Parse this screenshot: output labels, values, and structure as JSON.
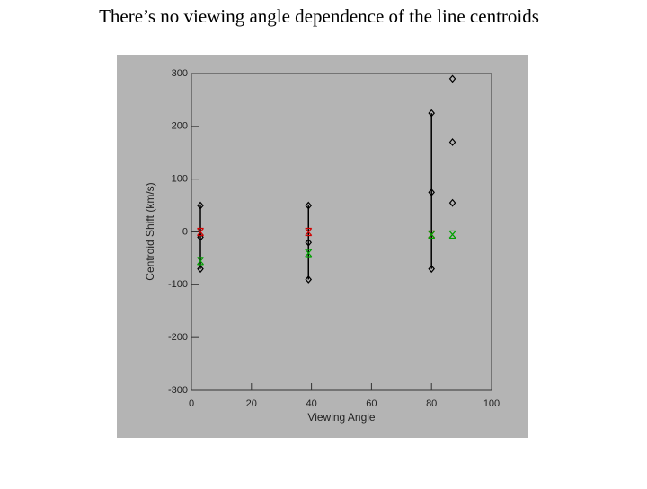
{
  "chart_data": {
    "type": "scatter",
    "title": "There’s no viewing angle dependence of the line centroids",
    "x_label": "Viewing Angle",
    "y_label": "Centroid Shift (km/s)",
    "xlim": [
      0,
      100
    ],
    "xticks": [
      0,
      20,
      40,
      60,
      80,
      100
    ],
    "ylim": [
      -300,
      300
    ],
    "yticks": [
      -300,
      -200,
      -100,
      0,
      100,
      200,
      300
    ],
    "grid": false,
    "series": [
      {
        "color": "#000000",
        "marker": "diamond",
        "x": [
          3,
          3,
          3,
          39,
          39,
          39,
          80,
          80,
          80,
          87,
          87,
          87
        ],
        "values": [
          50,
          -10,
          -70,
          50,
          -20,
          -90,
          225,
          75,
          -70,
          290,
          170,
          55
        ]
      },
      {
        "color": "#d00000",
        "marker": "cross",
        "x": [
          3,
          39,
          80
        ],
        "values": [
          0,
          0,
          -5
        ]
      },
      {
        "color": "#00a000",
        "marker": "cross",
        "x": [
          3,
          39,
          80,
          87
        ],
        "values": [
          -55,
          -40,
          -5,
          -5
        ]
      }
    ]
  }
}
